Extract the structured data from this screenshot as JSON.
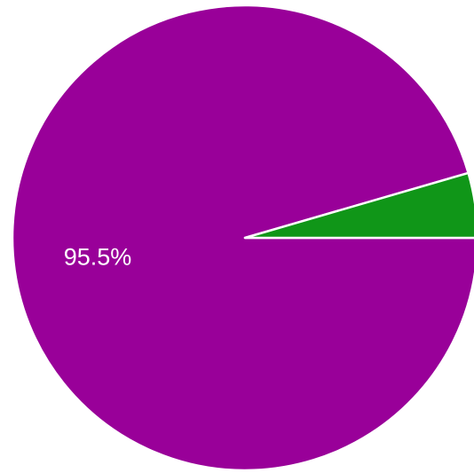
{
  "chart_data": {
    "type": "pie",
    "slices": [
      {
        "value": 95.5,
        "label": "95.5%",
        "color": "#990099"
      },
      {
        "value": 4.5,
        "label": "",
        "color": "#109618"
      }
    ],
    "start_angle_deg": 0,
    "direction": "clockwise",
    "legend": "none"
  }
}
